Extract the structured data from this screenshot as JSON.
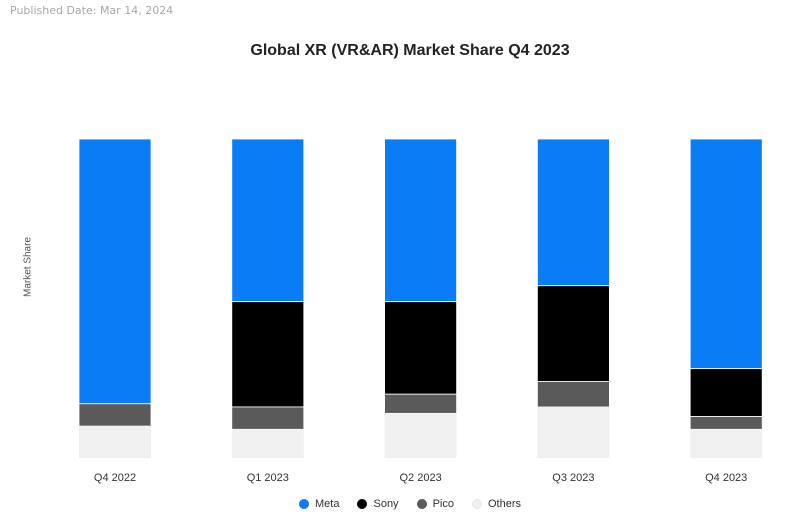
{
  "published": "Published Date: Mar 14, 2024",
  "chart_data": {
    "type": "bar",
    "stacked": true,
    "title": "Global XR (VR&AR) Market Share Q4 2023",
    "xlabel": "",
    "ylabel": "Market Share",
    "ylim": [
      0,
      100
    ],
    "categories": [
      "Q4 2022",
      "Q1 2023",
      "Q2 2023",
      "Q3 2023",
      "Q4 2023"
    ],
    "series": [
      {
        "name": "Meta",
        "color": "#0a7cf5",
        "values": [
          83,
          51,
          51,
          46,
          72
        ]
      },
      {
        "name": "Sony",
        "color": "#000000",
        "values": [
          0,
          33,
          29,
          30,
          15
        ]
      },
      {
        "name": "Pico",
        "color": "#5a5a5a",
        "values": [
          7,
          7,
          6,
          8,
          4
        ]
      },
      {
        "name": "Others",
        "color": "#f0f0f0",
        "values": [
          10,
          9,
          14,
          16,
          9
        ]
      }
    ],
    "legend": "bottom",
    "grid": false
  }
}
